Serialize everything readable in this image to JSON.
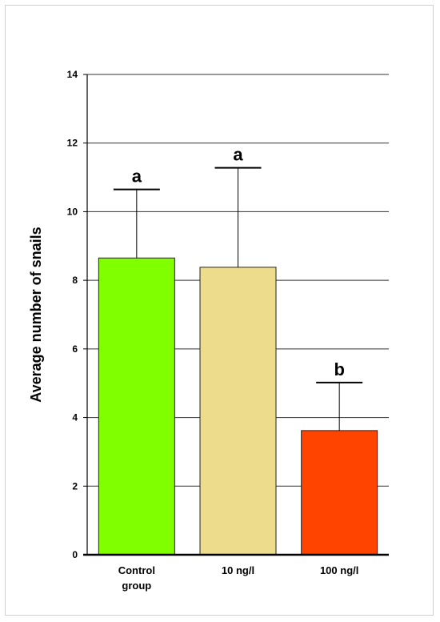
{
  "chart_data": {
    "type": "bar",
    "title": "",
    "xlabel": "",
    "ylabel": "Average number of snails",
    "ylim": [
      0,
      14
    ],
    "yticks": [
      0,
      2,
      4,
      6,
      8,
      10,
      12,
      14
    ],
    "grid": true,
    "categories": [
      [
        "Control",
        "group"
      ],
      [
        "10 ng/l"
      ],
      [
        "100 ng/l"
      ]
    ],
    "values": [
      8.65,
      8.38,
      3.62
    ],
    "errors": [
      2.0,
      2.9,
      1.4
    ],
    "significance": [
      "a",
      "a",
      "b"
    ],
    "colors": [
      "#80ff00",
      "#eddc8c",
      "#ff4400"
    ]
  }
}
